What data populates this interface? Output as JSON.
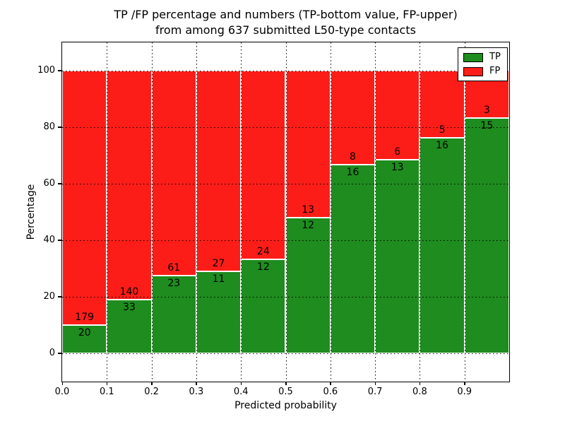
{
  "figure": {
    "title_line1": "TP /FP percentage and numbers (TP-bottom value, FP-upper)",
    "title_line2": "from among 637 submitted L50-type contacts"
  },
  "chart_data": {
    "type": "bar",
    "stacked": true,
    "normalized_to_100_percent": true,
    "title": "TP /FP percentage and numbers (TP-bottom value, FP-upper) from among 637 submitted L50-type contacts",
    "xlabel": "Predicted probability",
    "ylabel": "Percentage",
    "total_contacts": 637,
    "bins": [
      "0.0-0.1",
      "0.1-0.2",
      "0.2-0.3",
      "0.3-0.4",
      "0.4-0.5",
      "0.5-0.6",
      "0.6-0.7",
      "0.7-0.8",
      "0.8-0.9",
      "0.9-1.0"
    ],
    "series": [
      {
        "name": "TP",
        "color": "#1e8c1e",
        "counts": [
          20,
          33,
          23,
          11,
          12,
          12,
          16,
          13,
          16,
          15
        ],
        "pct_of_bin": [
          10.1,
          19.1,
          27.4,
          28.9,
          33.3,
          48.0,
          66.7,
          68.4,
          76.2,
          83.3
        ]
      },
      {
        "name": "FP",
        "color": "#fc1d18",
        "counts": [
          179,
          140,
          61,
          27,
          24,
          13,
          8,
          6,
          5,
          3
        ],
        "pct_of_bin": [
          89.9,
          80.9,
          72.6,
          71.1,
          66.7,
          52.0,
          33.3,
          31.6,
          23.8,
          16.7
        ]
      }
    ],
    "x_ticks": [
      "0.0",
      "0.1",
      "0.2",
      "0.3",
      "0.4",
      "0.5",
      "0.6",
      "0.7",
      "0.8",
      "0.9"
    ],
    "y_ticks": [
      "0",
      "20",
      "40",
      "60",
      "80",
      "100"
    ],
    "xlim": [
      0.0,
      1.0
    ],
    "ylim": [
      -10,
      110
    ],
    "grid": {
      "style": "dotted",
      "color": "#000000"
    },
    "legend": {
      "position": "upper right",
      "entries": [
        "TP",
        "FP"
      ]
    }
  }
}
